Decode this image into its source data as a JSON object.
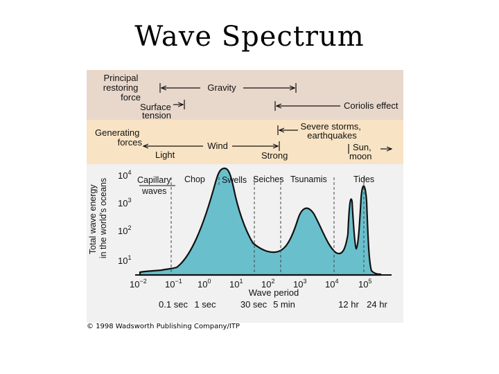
{
  "slide": {
    "title": "Wave Spectrum"
  },
  "bands": {
    "restoring": {
      "label_line1": "Principal",
      "label_line2": "restoring",
      "label_line3": "force",
      "gravity": "Gravity",
      "surface_line1": "Surface",
      "surface_line2": "tension",
      "coriolis": "Coriolis effect"
    },
    "generating": {
      "label_line1": "Generating",
      "label_line2": "forces",
      "storms_line1": "Severe storms,",
      "storms_line2": "earthquakes",
      "wind": "Wind",
      "light": "Light",
      "strong": "Strong",
      "sun_line1": "Sun,",
      "sun_line2": "moon"
    },
    "colors": {
      "restoring_band": "#e8d7cb",
      "generating_band": "#f8e3c4",
      "plot_area": "#f1f1f1",
      "wave_fill": "#69c0cc"
    }
  },
  "wave_types": {
    "capillary_line1": "Capillary",
    "capillary_line2": "waves",
    "chop": "Chop",
    "swells": "Swells",
    "seiches": "Seiches",
    "tsunamis": "Tsunamis",
    "tides": "Tides"
  },
  "axis": {
    "y_label_line1": "Total wave energy",
    "y_label_line2": "in the world's oceans",
    "x_label": "Wave period",
    "y_ticks": [
      {
        "base": "10",
        "exp": "4"
      },
      {
        "base": "10",
        "exp": "3"
      },
      {
        "base": "10",
        "exp": "2"
      },
      {
        "base": "10",
        "exp": "1"
      }
    ],
    "x_ticks": [
      {
        "base": "10",
        "exp": "−2"
      },
      {
        "base": "10",
        "exp": "−1"
      },
      {
        "base": "10",
        "exp": "0"
      },
      {
        "base": "10",
        "exp": "1"
      },
      {
        "base": "10",
        "exp": "2"
      },
      {
        "base": "10",
        "exp": "3"
      },
      {
        "base": "10",
        "exp": "4"
      },
      {
        "base": "10",
        "exp": "5"
      }
    ],
    "period_labels": [
      "0.1 sec",
      "1 sec",
      "30 sec",
      "5 min",
      "12 hr",
      "24 hr"
    ]
  },
  "credit": "© 1998 Wadsworth Publishing Company/ITP"
}
